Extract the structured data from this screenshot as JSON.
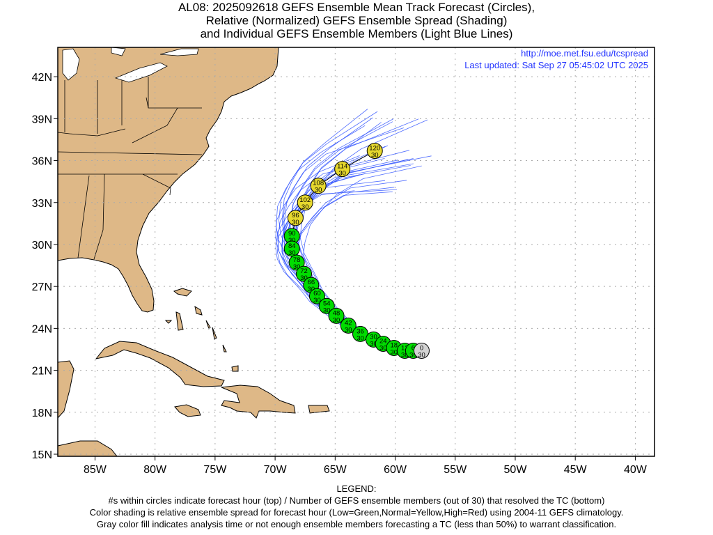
{
  "title": {
    "line1": "AL08: 2025092618 GEFS Ensemble Mean Track Forecast (Circles),",
    "line2": "Relative (Normalized) GEFS Ensemble Spread (Shading)",
    "line3": "and Individual GEFS Ensemble Members (Light Blue Lines)"
  },
  "header": {
    "url": "http://moe.met.fsu.edu/tcspread",
    "updated": "Last updated: Sat Sep 27 05:45:02 UTC 2025"
  },
  "colors": {
    "land": "#deb887",
    "low": "#00dd00",
    "normal": "#e6d82e",
    "gray": "#d3d3d3",
    "members": "#3355ff"
  },
  "chart_data": {
    "type": "map-track",
    "lon_range": [
      -88.1,
      -38.4
    ],
    "lat_range": [
      14.85,
      44.1
    ],
    "x_ticks": [
      {
        "v": -85,
        "label": "85W"
      },
      {
        "v": -80,
        "label": "80W"
      },
      {
        "v": -75,
        "label": "75W"
      },
      {
        "v": -70,
        "label": "70W"
      },
      {
        "v": -65,
        "label": "65W"
      },
      {
        "v": -60,
        "label": "60W"
      },
      {
        "v": -55,
        "label": "55W"
      },
      {
        "v": -50,
        "label": "50W"
      },
      {
        "v": -45,
        "label": "45W"
      },
      {
        "v": -40,
        "label": "40W"
      }
    ],
    "y_ticks": [
      {
        "v": 42,
        "label": "42N"
      },
      {
        "v": 39,
        "label": "39N"
      },
      {
        "v": 36,
        "label": "36N"
      },
      {
        "v": 33,
        "label": "33N"
      },
      {
        "v": 30,
        "label": "30N"
      },
      {
        "v": 27,
        "label": "27N"
      },
      {
        "v": 24,
        "label": "24N"
      },
      {
        "v": 21,
        "label": "21N"
      },
      {
        "v": 18,
        "label": "18N"
      },
      {
        "v": 15,
        "label": "15N"
      }
    ],
    "track": [
      {
        "hour": "0",
        "members": "30",
        "lat": 22.4,
        "lon": -57.8,
        "spread": "gray"
      },
      {
        "hour": "6",
        "members": "30",
        "lat": 22.4,
        "lon": -58.5,
        "spread": "low"
      },
      {
        "hour": "12",
        "members": "30",
        "lat": 22.4,
        "lon": -59.2,
        "spread": "low"
      },
      {
        "hour": "18",
        "members": "30",
        "lat": 22.6,
        "lon": -60.1,
        "spread": "low"
      },
      {
        "hour": "24",
        "members": "30",
        "lat": 22.9,
        "lon": -61.0,
        "spread": "low"
      },
      {
        "hour": "30",
        "members": "30",
        "lat": 23.2,
        "lon": -61.8,
        "spread": "low"
      },
      {
        "hour": "36",
        "members": "30",
        "lat": 23.6,
        "lon": -62.9,
        "spread": "low"
      },
      {
        "hour": "42",
        "members": "30",
        "lat": 24.2,
        "lon": -63.9,
        "spread": "low"
      },
      {
        "hour": "48",
        "members": "30",
        "lat": 24.9,
        "lon": -64.9,
        "spread": "low"
      },
      {
        "hour": "54",
        "members": "30",
        "lat": 25.6,
        "lon": -65.7,
        "spread": "low"
      },
      {
        "hour": "60",
        "members": "30",
        "lat": 26.3,
        "lon": -66.5,
        "spread": "low"
      },
      {
        "hour": "66",
        "members": "30",
        "lat": 27.1,
        "lon": -67.0,
        "spread": "low"
      },
      {
        "hour": "72",
        "members": "30",
        "lat": 27.9,
        "lon": -67.6,
        "spread": "low"
      },
      {
        "hour": "78",
        "members": "30",
        "lat": 28.7,
        "lon": -68.2,
        "spread": "low"
      },
      {
        "hour": "84",
        "members": "30",
        "lat": 29.7,
        "lon": -68.6,
        "spread": "low"
      },
      {
        "hour": "90",
        "members": "30",
        "lat": 30.6,
        "lon": -68.6,
        "spread": "low"
      },
      {
        "hour": "96",
        "members": "30",
        "lat": 31.9,
        "lon": -68.3,
        "spread": "normal"
      },
      {
        "hour": "102",
        "members": "30",
        "lat": 33.0,
        "lon": -67.5,
        "spread": "normal"
      },
      {
        "hour": "108",
        "members": "30",
        "lat": 34.2,
        "lon": -66.4,
        "spread": "normal"
      },
      {
        "hour": "114",
        "members": "30",
        "lat": 35.4,
        "lon": -64.4,
        "spread": "normal"
      },
      {
        "hour": "120",
        "members": "30",
        "lat": 36.7,
        "lon": -61.7,
        "spread": "normal"
      }
    ]
  },
  "legend": {
    "heading": "LEGEND:",
    "line1": "#s within circles indicate forecast hour (top) / Number of GEFS ensemble members (out of 30) that resolved the TC (bottom)",
    "line2": "Color shading is relative ensemble spread for forecast hour (Low=Green,Normal=Yellow,High=Red) using 2004-11 GEFS climatology.",
    "line3": "Gray color fill indicates analysis time or not enough ensemble members forecasting a TC (less than 50%) to warrant classification."
  }
}
